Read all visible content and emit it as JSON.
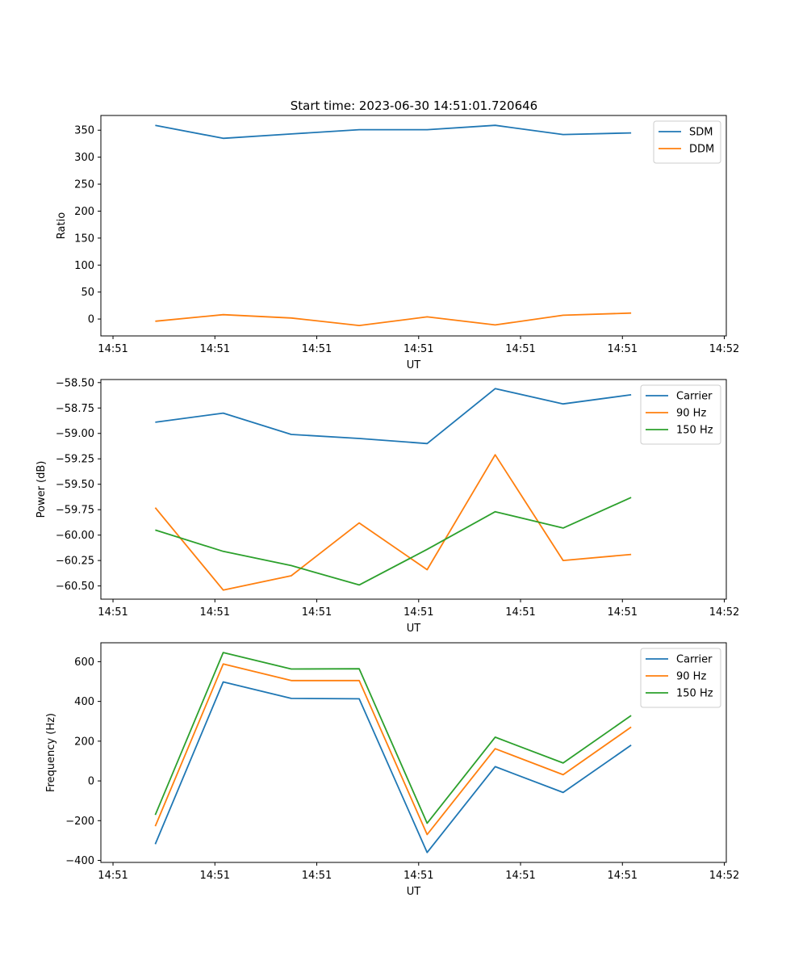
{
  "title": "Start time: 2023-06-30 14:51:01.720646",
  "colors": {
    "blue": "#1f77b4",
    "orange": "#ff7f0e",
    "green": "#2ca02c"
  },
  "chart_data": [
    {
      "type": "line",
      "xlabel": "UT",
      "ylabel": "Ratio",
      "xticks": [
        "14:51",
        "14:51",
        "14:51",
        "14:51",
        "14:51",
        "14:51",
        "14:52"
      ],
      "x": [
        1,
        2,
        3,
        4,
        5,
        6,
        7,
        8
      ],
      "xlim": [
        0.2,
        9.4
      ],
      "ylim": [
        -31.3,
        377.3
      ],
      "yticks": [
        0,
        50,
        100,
        150,
        200,
        250,
        300,
        350
      ],
      "legend": "top-right",
      "grid": false,
      "series": [
        {
          "name": "SDM",
          "color": "#1f77b4",
          "values": [
            359,
            335,
            343,
            351,
            351,
            359,
            342,
            345
          ]
        },
        {
          "name": "DDM",
          "color": "#ff7f0e",
          "values": [
            -4,
            8,
            2,
            -12,
            4,
            -11,
            7,
            11
          ]
        }
      ]
    },
    {
      "type": "line",
      "xlabel": "UT",
      "ylabel": "Power (dB)",
      "xticks": [
        "14:51",
        "14:51",
        "14:51",
        "14:51",
        "14:51",
        "14:51",
        "14:52"
      ],
      "x": [
        1,
        2,
        3,
        4,
        5,
        6,
        7,
        8
      ],
      "xlim": [
        0.2,
        9.4
      ],
      "ylim": [
        -60.63,
        -58.47
      ],
      "yticks": [
        -60.5,
        -60.25,
        -60.0,
        -59.75,
        -59.5,
        -59.25,
        -59.0,
        -58.75,
        -58.5
      ],
      "legend": "top-right",
      "grid": false,
      "series": [
        {
          "name": "Carrier",
          "color": "#1f77b4",
          "values": [
            -58.89,
            -58.8,
            -59.01,
            -59.05,
            -59.1,
            -58.56,
            -58.71,
            -58.62
          ]
        },
        {
          "name": "90 Hz",
          "color": "#ff7f0e",
          "values": [
            -59.73,
            -60.54,
            -60.4,
            -59.88,
            -60.34,
            -59.21,
            -60.25,
            -60.19
          ]
        },
        {
          "name": "150 Hz",
          "color": "#2ca02c",
          "values": [
            -59.95,
            -60.16,
            -60.3,
            -60.49,
            -60.14,
            -59.77,
            -59.93,
            -59.63
          ]
        }
      ]
    },
    {
      "type": "line",
      "xlabel": "UT",
      "ylabel": "Frequency (Hz)",
      "xticks": [
        "14:51",
        "14:51",
        "14:51",
        "14:51",
        "14:51",
        "14:51",
        "14:52"
      ],
      "x": [
        1,
        2,
        3,
        4,
        5,
        6,
        7,
        8
      ],
      "xlim": [
        0.2,
        9.4
      ],
      "ylim": [
        -410,
        695
      ],
      "yticks": [
        -400,
        -200,
        0,
        200,
        400,
        600
      ],
      "legend": "top-right",
      "grid": false,
      "series": [
        {
          "name": "Carrier",
          "color": "#1f77b4",
          "values": [
            -318,
            498,
            415,
            413,
            -360,
            72,
            -58,
            180
          ]
        },
        {
          "name": "90 Hz",
          "color": "#ff7f0e",
          "values": [
            -228,
            588,
            505,
            505,
            -270,
            162,
            31,
            271
          ]
        },
        {
          "name": "150 Hz",
          "color": "#2ca02c",
          "values": [
            -171,
            646,
            563,
            564,
            -213,
            220,
            90,
            329
          ]
        }
      ]
    }
  ]
}
